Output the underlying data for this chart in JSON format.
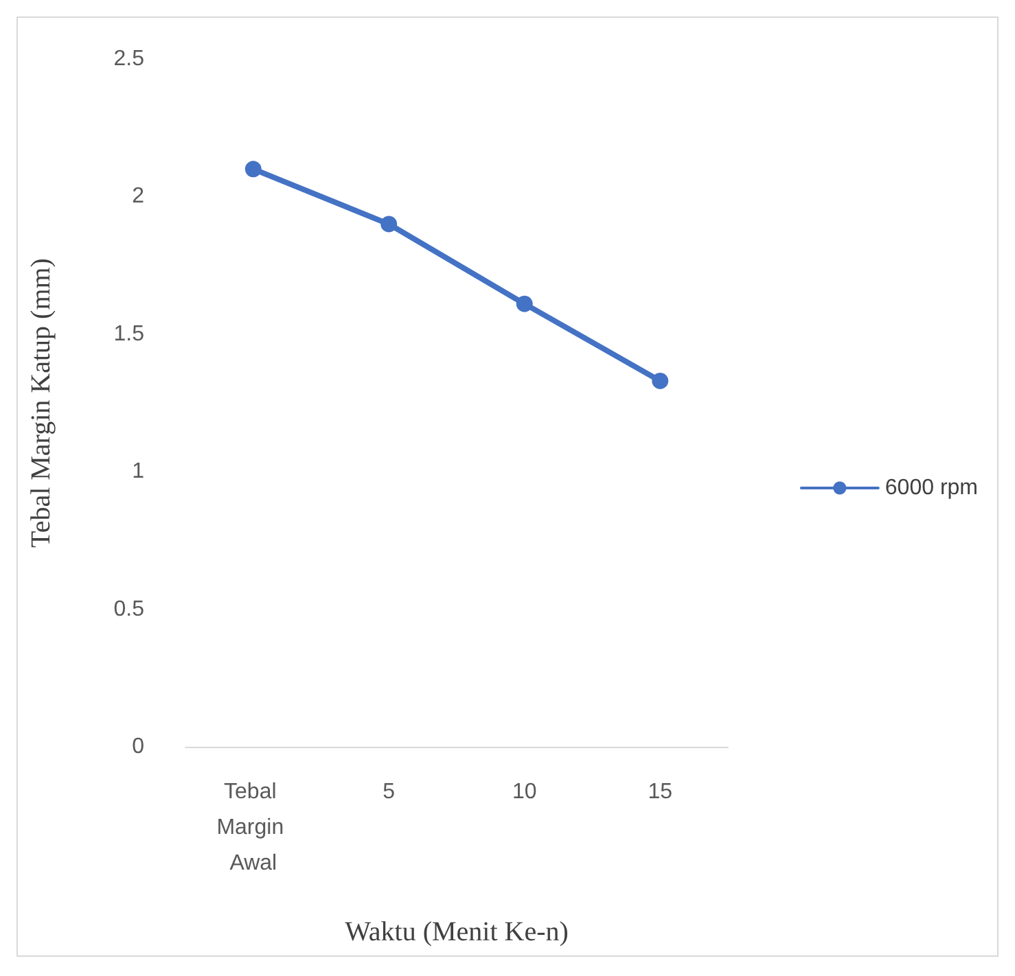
{
  "chart_data": {
    "type": "line",
    "xlabel": "Waktu (Menit Ke-n)",
    "ylabel": "Tebal Margin Katup (mm)",
    "categories": [
      "Tebal Margin Awal",
      "5",
      "10",
      "15"
    ],
    "series": [
      {
        "name": "6000 rpm",
        "color": "#4472c4",
        "values": [
          2.1,
          1.9,
          1.61,
          1.33
        ]
      }
    ],
    "ylim": [
      0,
      2.5
    ],
    "yticks": [
      0,
      0.5,
      1,
      1.5,
      2,
      2.5
    ],
    "grid": false,
    "legend": "right",
    "marker": "circle",
    "line_style": "solid"
  }
}
